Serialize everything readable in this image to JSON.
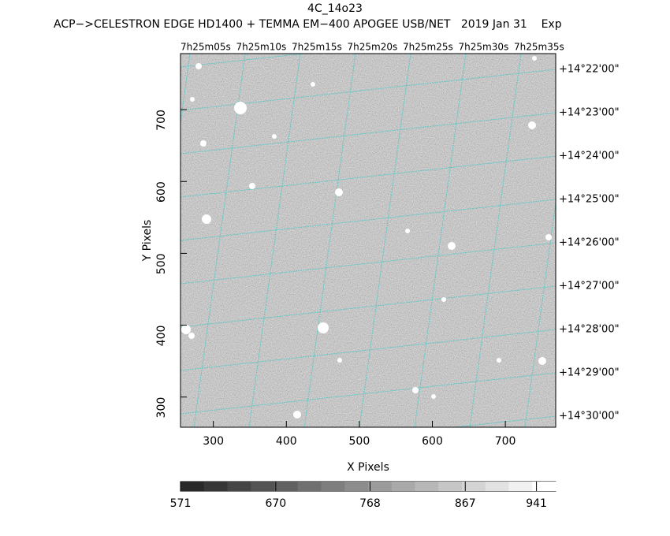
{
  "chart_data": {
    "type": "image",
    "title": "4C_14o23",
    "subtitle": "ACP−>CELESTRON EDGE HD1400 + TEMMA EM−400 APOGEE USB/NET   2019 Jan 31    Exp",
    "xlabel": "X Pixels",
    "ylabel": "Y Pixels",
    "xlim": [
      255,
      769
    ],
    "xticks": [
      300,
      400,
      500,
      600,
      700
    ],
    "ylim": [
      258,
      778
    ],
    "yticks": [
      300,
      400,
      500,
      600,
      700
    ],
    "top_tick_labels": [
      "7h25m05s",
      "7h25m10s",
      "7h25m15s",
      "7h25m20s",
      "7h25m25s",
      "7h25m30s",
      "7h25m35s"
    ],
    "right_tick_labels": [
      "+14°22'00\"",
      "+14°23'00\"",
      "+14°24'00\"",
      "+14°25'00\"",
      "+14°26'00\"",
      "+14°27'00\"",
      "+14°28'00\"",
      "+14°29'00\"",
      "+14°30'00\""
    ],
    "grid_color": "#5fc8c8",
    "colorbar": {
      "lim": [
        571,
        961
      ],
      "ticks": [
        571,
        670,
        768,
        867,
        941
      ]
    }
  }
}
